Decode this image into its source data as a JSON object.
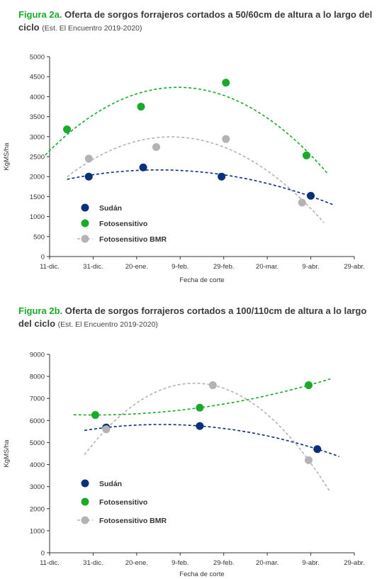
{
  "figures": [
    {
      "label": "Figura 2a.",
      "title": "Oferta de sorgos forrajeros cortados a 50/60cm de altura a lo largo del ciclo",
      "source": "(Est. El Encuentro 2019-2020)"
    },
    {
      "label": "Figura 2b.",
      "title": "Oferta de sorgos forrajeros cortados a 100/110cm de altura a lo largo del ciclo",
      "source": "(Est. El Encuentro 2019-2020)"
    }
  ],
  "colors": {
    "sudan": "#0a2f7d",
    "fotosensitivo": "#1aaa2a",
    "fotosensitivo_bmr": "#b3b3b3",
    "axis": "#333333"
  },
  "chart_data": [
    {
      "type": "scatter",
      "trendlines": "polynomial, dashed",
      "xlabel": "Fecha de corte",
      "ylabel": "KgMS/ha",
      "x_ticks": [
        "11-dic.",
        "31-dic.",
        "20-ene.",
        "9-feb.",
        "29-feb.",
        "20-mar.",
        "9-abr.",
        "29-abr."
      ],
      "x_tick_days": [
        0,
        20,
        40,
        60,
        80,
        100,
        120,
        140
      ],
      "y_ticks": [
        0,
        500,
        1000,
        1500,
        2000,
        2500,
        3000,
        3500,
        4000,
        4500,
        5000
      ],
      "ylim": [
        0,
        5000
      ],
      "legend_position": "lower-left",
      "series": [
        {
          "name": "Sudán",
          "color_key": "sudan",
          "x": [
            "2019-12-29",
            "2020-01-23",
            "2020-02-28",
            "2020-04-09"
          ],
          "y": [
            2000,
            2230,
            2000,
            1520
          ]
        },
        {
          "name": "Fotosensitivo",
          "color_key": "fotosensitivo",
          "x": [
            "2019-12-19",
            "2020-01-22",
            "2020-03-01",
            "2020-04-07"
          ],
          "y": [
            3180,
            3750,
            4350,
            2530
          ]
        },
        {
          "name": "Fotosensitivo BMR",
          "color_key": "fotosensitivo_bmr",
          "x": [
            "2019-12-29",
            "2020-01-29",
            "2020-03-01",
            "2020-04-05"
          ],
          "y": [
            2450,
            2740,
            2940,
            1350
          ]
        }
      ]
    },
    {
      "type": "scatter",
      "trendlines": "polynomial, dashed",
      "xlabel": "Fecha de corte",
      "ylabel": "KgMS/ha",
      "x_ticks": [
        "11-dic.",
        "31-dic.",
        "20-ene.",
        "9-feb.",
        "29-feb.",
        "20-mar.",
        "9-abr.",
        "29-abr."
      ],
      "x_tick_days": [
        0,
        20,
        40,
        60,
        80,
        100,
        120,
        140
      ],
      "y_ticks": [
        0,
        1000,
        2000,
        3000,
        4000,
        5000,
        6000,
        7000,
        8000,
        9000
      ],
      "ylim": [
        0,
        9000
      ],
      "legend_position": "lower-left",
      "series": [
        {
          "name": "Sudán",
          "color_key": "sudan",
          "x": [
            "2020-01-06",
            "2020-02-18",
            "2020-04-12"
          ],
          "y": [
            5680,
            5750,
            4700
          ]
        },
        {
          "name": "Fotosensitivo",
          "color_key": "fotosensitivo",
          "x": [
            "2020-01-01",
            "2020-02-18",
            "2020-04-08"
          ],
          "y": [
            6250,
            6580,
            7600
          ]
        },
        {
          "name": "Fotosensitivo BMR",
          "color_key": "fotosensitivo_bmr",
          "x": [
            "2020-01-06",
            "2020-02-24",
            "2020-04-08"
          ],
          "y": [
            5600,
            7600,
            4200
          ]
        }
      ]
    }
  ]
}
